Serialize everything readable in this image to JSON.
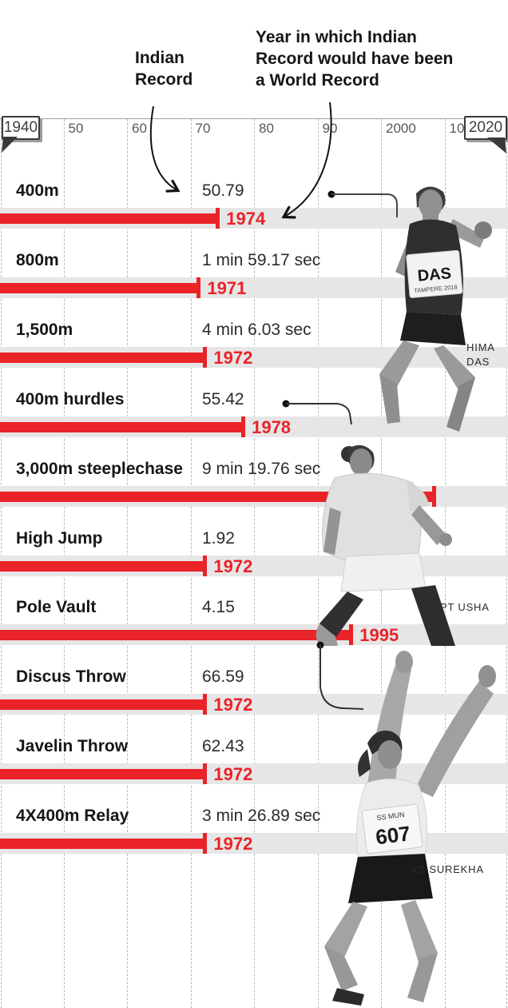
{
  "header": {
    "indian_record_label": "Indian\nRecord",
    "world_record_label": "Year in which Indian Record would have been a World Record"
  },
  "axis": {
    "start_box_label": "1940",
    "end_box_label": "2020",
    "start_year": 1940,
    "end_year": 2020,
    "ticks": [
      {
        "label": "50",
        "year": 1950
      },
      {
        "label": "60",
        "year": 1960
      },
      {
        "label": "70",
        "year": 1970
      },
      {
        "label": "80",
        "year": 1980
      },
      {
        "label": "90",
        "year": 1990
      },
      {
        "label": "2000",
        "year": 2000
      },
      {
        "label": "10",
        "year": 2010
      }
    ]
  },
  "rows": [
    {
      "event": "400m",
      "value": "50.79",
      "year_label": "1974",
      "end_year": 1974
    },
    {
      "event": "800m",
      "value": "1 min 59.17 sec",
      "year_label": "1971",
      "end_year": 1971
    },
    {
      "event": "1,500m",
      "value": "4 min 6.03 sec",
      "year_label": "1972",
      "end_year": 1972
    },
    {
      "event": "400m hurdles",
      "value": "55.42",
      "year_label": "1978",
      "end_year": 1978
    },
    {
      "event": "3,000m steeplechase",
      "value": "9 min 19.76 sec",
      "year_label": "",
      "end_year": 2008
    },
    {
      "event": "High Jump",
      "value": "1.92",
      "year_label": "1972",
      "end_year": 1972
    },
    {
      "event": "Pole Vault",
      "value": "4.15",
      "year_label": "1995",
      "end_year": 1995
    },
    {
      "event": "Discus Throw",
      "value": "66.59",
      "year_label": "1972",
      "end_year": 1972
    },
    {
      "event": "Javelin Throw",
      "value": "62.43",
      "year_label": "1972",
      "end_year": 1972
    },
    {
      "event": "4X400m Relay",
      "value": "3 min 26.89 sec",
      "year_label": "1972",
      "end_year": 1972
    }
  ],
  "athletes": [
    {
      "caption": "HIMA\nDAS",
      "bib_top": "DAS",
      "bib_bottom": "TAMPERE 2018"
    },
    {
      "caption": "PT USHA"
    },
    {
      "caption": "VS SUREKHA",
      "bib_top": "SS MUN",
      "bib_number": "607"
    }
  ],
  "colors": {
    "bar_red": "#ea2329",
    "band_gray": "#e6e6e6",
    "grid_gray": "#b9b9b9",
    "text_dark": "#161616",
    "tick_gray": "#585858"
  },
  "chart_data": {
    "type": "bar",
    "title": "Year in which Indian Record would have been a World Record",
    "categories": [
      "400m",
      "800m",
      "1,500m",
      "400m hurdles",
      "3,000m steeplechase",
      "High Jump",
      "Pole Vault",
      "Discus Throw",
      "Javelin Throw",
      "4X400m Relay"
    ],
    "series": [
      {
        "name": "Indian Record",
        "values": [
          "50.79",
          "1 min 59.17 sec",
          "4 min 6.03 sec",
          "55.42",
          "9 min 19.76 sec",
          "1.92",
          "4.15",
          "66.59",
          "62.43",
          "3 min 26.89 sec"
        ]
      },
      {
        "name": "Year in which Indian Record would have been a World Record",
        "values": [
          1974,
          1971,
          1972,
          1978,
          null,
          1972,
          1995,
          1972,
          1972,
          1972
        ]
      }
    ],
    "x_axis": {
      "min": 1940,
      "max": 2020,
      "tick_labels": [
        "1940",
        "50",
        "60",
        "70",
        "80",
        "90",
        "2000",
        "10",
        "2020"
      ],
      "grid": true
    },
    "legend_position": "none",
    "annotations": [
      "Indian Record -> value column",
      "Year arrow -> 1974",
      "leader dots link bars to athlete photos"
    ]
  }
}
